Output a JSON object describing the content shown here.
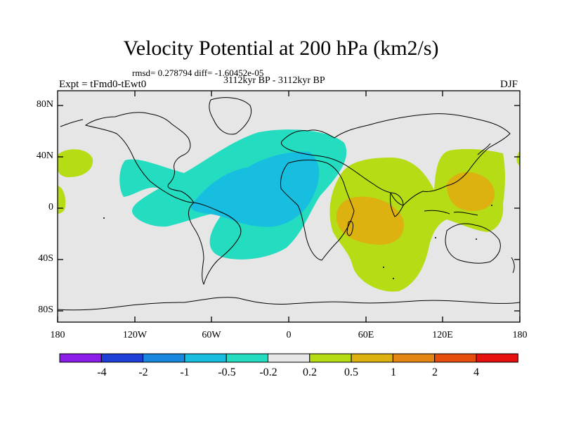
{
  "title": "Velocity Potential at 200 hPa (km2/s)",
  "stats": "rmsd= 0.278794 diff= -1.60452e-05",
  "period": "3112kyr BP - 3112kyr BP",
  "experiment": "Expt = tFmd0-tEwt0",
  "season": "DJF",
  "map": {
    "projection": "cylindrical equidistant",
    "lon_range": [
      -180,
      180
    ],
    "lat_range": [
      -90,
      90
    ],
    "lat_labels": [
      "80N",
      "40N",
      "0",
      "40S",
      "80S"
    ],
    "lon_labels": [
      "180",
      "120W",
      "60W",
      "0",
      "60E",
      "120E",
      "180"
    ],
    "background_color": "#e6e6e6"
  },
  "colorbar": {
    "labels": [
      "-4",
      "-2",
      "-1",
      "-0.5",
      "-0.2",
      "0.2",
      "0.5",
      "1",
      "2",
      "4"
    ],
    "colors": [
      "#8a1de6",
      "#1d3fd6",
      "#1787e0",
      "#18bedf",
      "#24dcc0",
      "#e6e6e6",
      "#b5dc14",
      "#ddb10f",
      "#e38614",
      "#e54e0c",
      "#e6110e"
    ]
  }
}
